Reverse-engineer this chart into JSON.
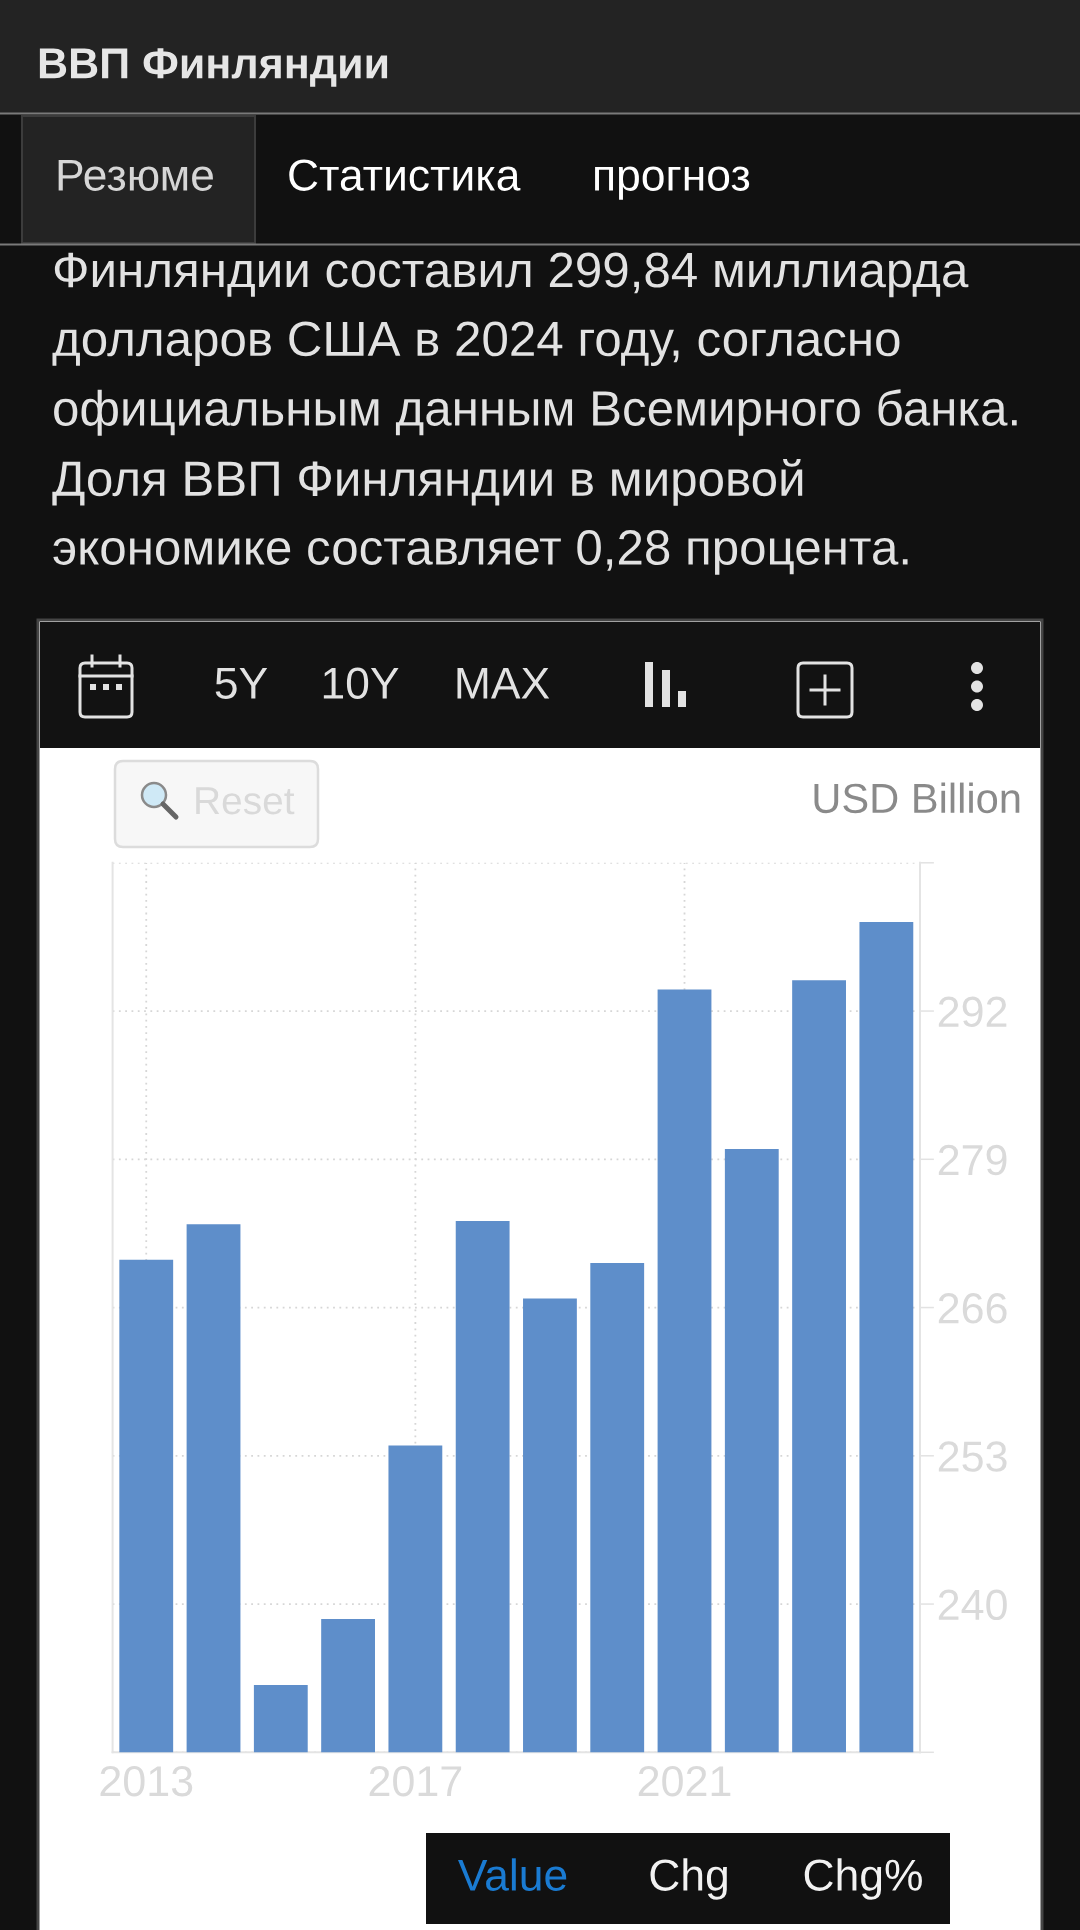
{
  "chart_data": {
    "type": "bar",
    "title": "ВВП Финляндии",
    "subtitle": "Финляндии составил 299,84 миллиарда\nдолларов США в 2024 году, согласно\nофициальным данным Всемирного банка.\nДоля ВВП Финляндии в мировой\nэкономике составляет 0,28 процента.",
    "ylabel": "USD Billion",
    "x": [
      2013,
      2014,
      2015,
      2016,
      2017,
      2018,
      2019,
      2020,
      2021,
      2022,
      2023,
      2024
    ],
    "values": [
      270.2,
      273.3,
      232.9,
      238.7,
      253.9,
      273.6,
      266.8,
      269.9,
      293.9,
      279.9,
      294.7,
      299.8
    ],
    "color": "#5e8eca",
    "xlim": [
      2012.5,
      2024.5
    ],
    "xticks": [
      2013,
      2017,
      2021
    ],
    "ylim": [
      227,
      305
    ],
    "yticks": [
      {
        "value": 227,
        "label": null
      },
      240,
      253,
      266,
      279,
      292,
      {
        "value": 305,
        "label": null
      }
    ],
    "grid": true,
    "annotations": [
      "Резюме",
      "Статистика",
      "прогноз",
      "5Y",
      "10Y",
      "MAX",
      "Reset",
      "Value",
      "Chg",
      "Chg%"
    ]
  }
}
